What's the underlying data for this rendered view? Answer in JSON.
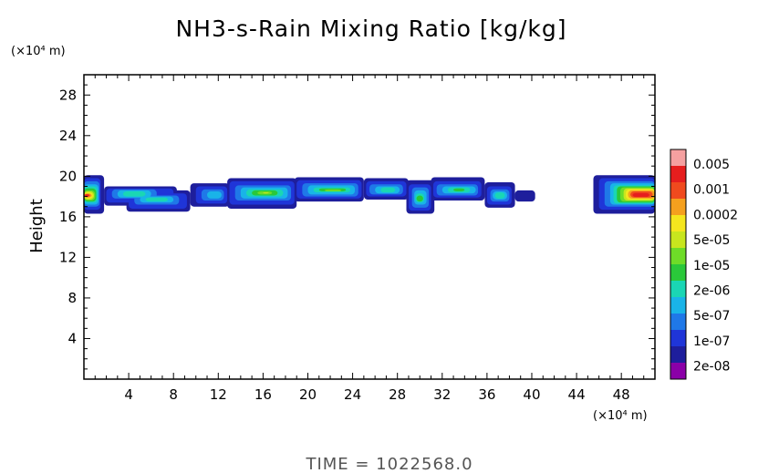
{
  "chart_data": {
    "type": "heatmap",
    "title": "NH3-s-Rain Mixing Ratio [kg/kg]",
    "xlabel": "",
    "ylabel": "Height",
    "x_unit": "(×10⁴ m)",
    "y_unit": "(×10⁴ m)",
    "xlim": [
      0,
      51
    ],
    "ylim": [
      0,
      30
    ],
    "xticks": [
      4,
      8,
      12,
      16,
      20,
      24,
      28,
      32,
      36,
      40,
      44,
      48
    ],
    "yticks": [
      4,
      8,
      12,
      16,
      20,
      24,
      28
    ],
    "footer": "TIME  =  1022568.0",
    "colorbar": {
      "labels": [
        "0.005",
        "0.001",
        "0.0002",
        "5e-05",
        "1e-05",
        "2e-06",
        "5e-07",
        "1e-07",
        "2e-08"
      ],
      "colors": [
        "#8b00a8",
        "#1e1e9c",
        "#1f35d8",
        "#1f78e8",
        "#19b4e8",
        "#1ad6b4",
        "#2ac83a",
        "#6edc28",
        "#c8e61e",
        "#f5e61e",
        "#f5a01e",
        "#f04a1e",
        "#e61e1e",
        "#f5a0a0"
      ]
    },
    "layers": [
      {
        "level": 1,
        "boxes": [
          [
            0,
            1.8,
            16.3,
            20.1
          ],
          [
            1.8,
            8.3,
            17.1,
            19.0
          ],
          [
            3.8,
            9.5,
            16.5,
            18.6
          ],
          [
            9.5,
            13.0,
            17.0,
            19.3
          ],
          [
            12.8,
            19.0,
            16.8,
            19.8
          ],
          [
            18.8,
            25.0,
            17.5,
            19.9
          ],
          [
            25.0,
            29.0,
            17.7,
            19.8
          ],
          [
            28.8,
            31.3,
            16.3,
            19.6
          ],
          [
            31.0,
            35.8,
            17.6,
            19.9
          ],
          [
            35.8,
            38.5,
            16.9,
            19.4
          ],
          [
            38.5,
            40.3,
            17.5,
            18.6
          ],
          [
            45.5,
            51,
            16.3,
            20.1
          ]
        ]
      },
      {
        "level": 2,
        "boxes": [
          [
            0,
            1.5,
            16.7,
            19.8
          ],
          [
            2.0,
            8.0,
            17.4,
            18.8
          ],
          [
            4.0,
            9.2,
            16.8,
            18.3
          ],
          [
            10.0,
            12.8,
            17.3,
            19.0
          ],
          [
            13.0,
            18.8,
            17.2,
            19.5
          ],
          [
            19.0,
            24.8,
            17.8,
            19.6
          ],
          [
            25.2,
            28.8,
            18.0,
            19.5
          ],
          [
            29.0,
            31.0,
            16.6,
            19.2
          ],
          [
            31.2,
            35.5,
            17.9,
            19.5
          ],
          [
            36.0,
            38.2,
            17.2,
            19.0
          ],
          [
            46.0,
            51,
            16.7,
            19.8
          ]
        ]
      },
      {
        "level": 3,
        "boxes": [
          [
            0,
            1.4,
            17.0,
            19.5
          ],
          [
            2.5,
            6.5,
            17.8,
            18.7
          ],
          [
            4.5,
            8.5,
            17.2,
            18.1
          ],
          [
            10.5,
            12.5,
            17.6,
            18.7
          ],
          [
            13.5,
            18.5,
            17.6,
            19.1
          ],
          [
            19.5,
            24.5,
            18.0,
            19.3
          ],
          [
            25.5,
            28.5,
            18.2,
            19.2
          ],
          [
            29.3,
            30.8,
            16.9,
            18.9
          ],
          [
            31.5,
            35.2,
            18.1,
            19.2
          ],
          [
            36.3,
            38.0,
            17.5,
            18.7
          ],
          [
            46.5,
            51,
            17.0,
            19.5
          ]
        ]
      },
      {
        "level": 4,
        "boxes": [
          [
            0,
            1.3,
            17.2,
            19.2
          ],
          [
            3.0,
            6.0,
            17.9,
            18.6
          ],
          [
            5.0,
            8.0,
            17.4,
            18.0
          ],
          [
            11.0,
            12.3,
            17.8,
            18.5
          ],
          [
            14.0,
            18.2,
            17.8,
            18.9
          ],
          [
            20.0,
            24.2,
            18.2,
            19.1
          ],
          [
            26.0,
            28.2,
            18.3,
            19.0
          ],
          [
            29.5,
            30.6,
            17.2,
            18.6
          ],
          [
            32.0,
            35.0,
            18.3,
            19.0
          ],
          [
            36.5,
            37.8,
            17.7,
            18.5
          ],
          [
            47.0,
            51,
            17.2,
            19.3
          ]
        ]
      },
      {
        "level": 5,
        "boxes": [
          [
            0,
            1.2,
            17.4,
            19.0
          ],
          [
            3.5,
            5.5,
            18.0,
            18.5
          ],
          [
            5.5,
            7.5,
            17.5,
            17.9
          ],
          [
            14.5,
            17.8,
            18.0,
            18.7
          ],
          [
            20.5,
            23.8,
            18.4,
            18.9
          ],
          [
            26.5,
            27.8,
            18.4,
            18.9
          ],
          [
            29.6,
            30.4,
            17.4,
            18.3
          ],
          [
            32.5,
            34.5,
            18.4,
            18.9
          ],
          [
            36.7,
            37.6,
            17.8,
            18.4
          ],
          [
            47.3,
            51,
            17.3,
            19.1
          ]
        ]
      },
      {
        "level": 6,
        "boxes": [
          [
            0,
            1.1,
            17.5,
            18.8
          ],
          [
            15.0,
            17.3,
            18.1,
            18.6
          ],
          [
            21.0,
            23.4,
            18.5,
            18.8
          ],
          [
            29.7,
            30.3,
            17.5,
            18.1
          ],
          [
            33.0,
            34.0,
            18.5,
            18.8
          ],
          [
            47.6,
            51,
            17.4,
            19.0
          ]
        ]
      },
      {
        "level": 7,
        "boxes": [
          [
            0,
            1.0,
            17.6,
            18.6
          ],
          [
            15.5,
            16.8,
            18.2,
            18.5
          ],
          [
            21.5,
            23.0,
            18.5,
            18.7
          ],
          [
            47.9,
            51,
            17.5,
            18.9
          ]
        ]
      },
      {
        "level": 8,
        "boxes": [
          [
            0,
            0.9,
            17.7,
            18.5
          ],
          [
            16.0,
            16.5,
            18.3,
            18.4
          ],
          [
            48.2,
            51,
            17.6,
            18.8
          ]
        ]
      },
      {
        "level": 9,
        "boxes": [
          [
            0,
            0.8,
            17.8,
            18.4
          ],
          [
            48.4,
            51,
            17.7,
            18.7
          ]
        ]
      },
      {
        "level": 10,
        "boxes": [
          [
            0,
            0.7,
            17.9,
            18.3
          ],
          [
            48.6,
            51,
            17.8,
            18.6
          ]
        ]
      },
      {
        "level": 11,
        "boxes": [
          [
            0.05,
            0.55,
            17.95,
            18.25
          ],
          [
            48.8,
            50.8,
            17.9,
            18.5
          ]
        ]
      },
      {
        "level": 12,
        "boxes": [
          [
            0.1,
            0.45,
            18.0,
            18.2
          ],
          [
            49.0,
            50.5,
            17.95,
            18.35
          ]
        ]
      }
    ]
  }
}
